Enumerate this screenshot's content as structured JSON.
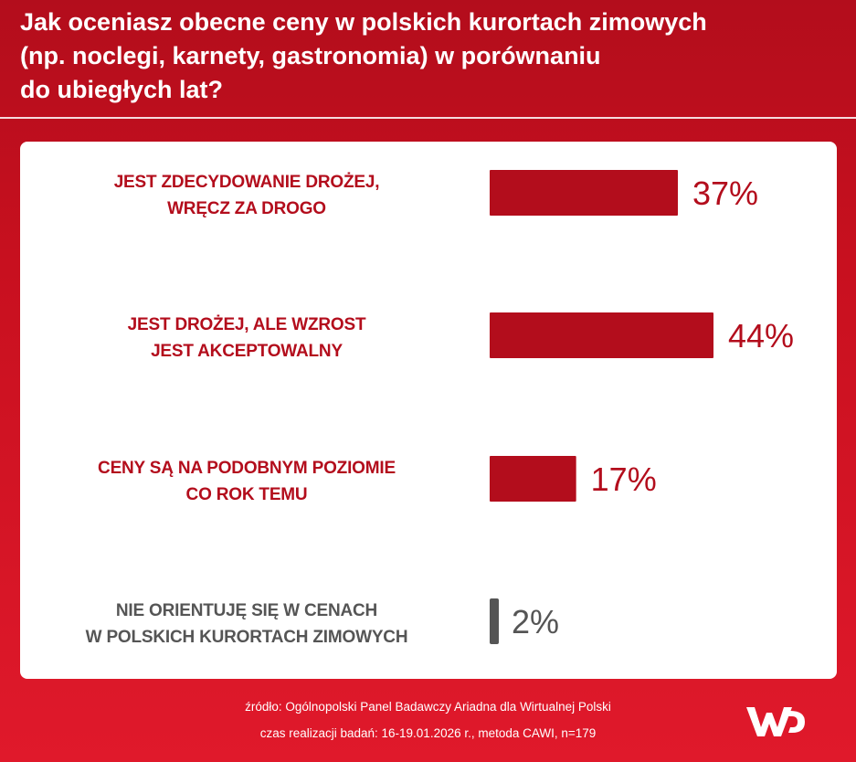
{
  "header": {
    "title_lines": [
      "Jak oceniasz obecne ceny w polskich kurortach zimowych",
      "(np. noclegi, karnety, gastronomia) w porównaniu",
      "do ubiegłych lat?"
    ]
  },
  "chart_data": {
    "type": "bar",
    "orientation": "horizontal",
    "title": "Jak oceniasz obecne ceny w polskich kurortach zimowych (np. noclegi, karnety, gastronomia) w porównaniu do ubiegłych lat?",
    "categories": [
      [
        "JEST ZDECYDOWANIE DROŻEJ,",
        "WRĘCZ ZA DROGO"
      ],
      [
        "JEST DROŻEJ, ALE WZROST",
        "JEST AKCEPTOWALNY"
      ],
      [
        "CENY SĄ NA PODOBNYM POZIOMIE",
        "CO ROK TEMU"
      ],
      [
        "NIE ORIENTUJĘ SIĘ W CENACH",
        "W POLSKICH KURORTACH ZIMOWYCH"
      ]
    ],
    "values": [
      37,
      44,
      17,
      2
    ],
    "value_labels": [
      "37%",
      "44%",
      "17%",
      "2%"
    ],
    "colors": [
      "#b30d1c",
      "#b30d1c",
      "#b30d1c",
      "#555555"
    ],
    "label_colors": [
      "#b30d1c",
      "#b30d1c",
      "#b30d1c",
      "#555555"
    ],
    "unit": "%",
    "xlim": [
      0,
      44
    ]
  },
  "footer": {
    "source": "źródło: Ogólnopolski Panel Badawczy Ariadna dla Wirtualnej Polski",
    "method": "czas realizacji badań: 16-19.01.2026 r., metoda CAWI, n=179"
  },
  "logo": {
    "text": "WP",
    "icon": "wp-logo-icon"
  }
}
